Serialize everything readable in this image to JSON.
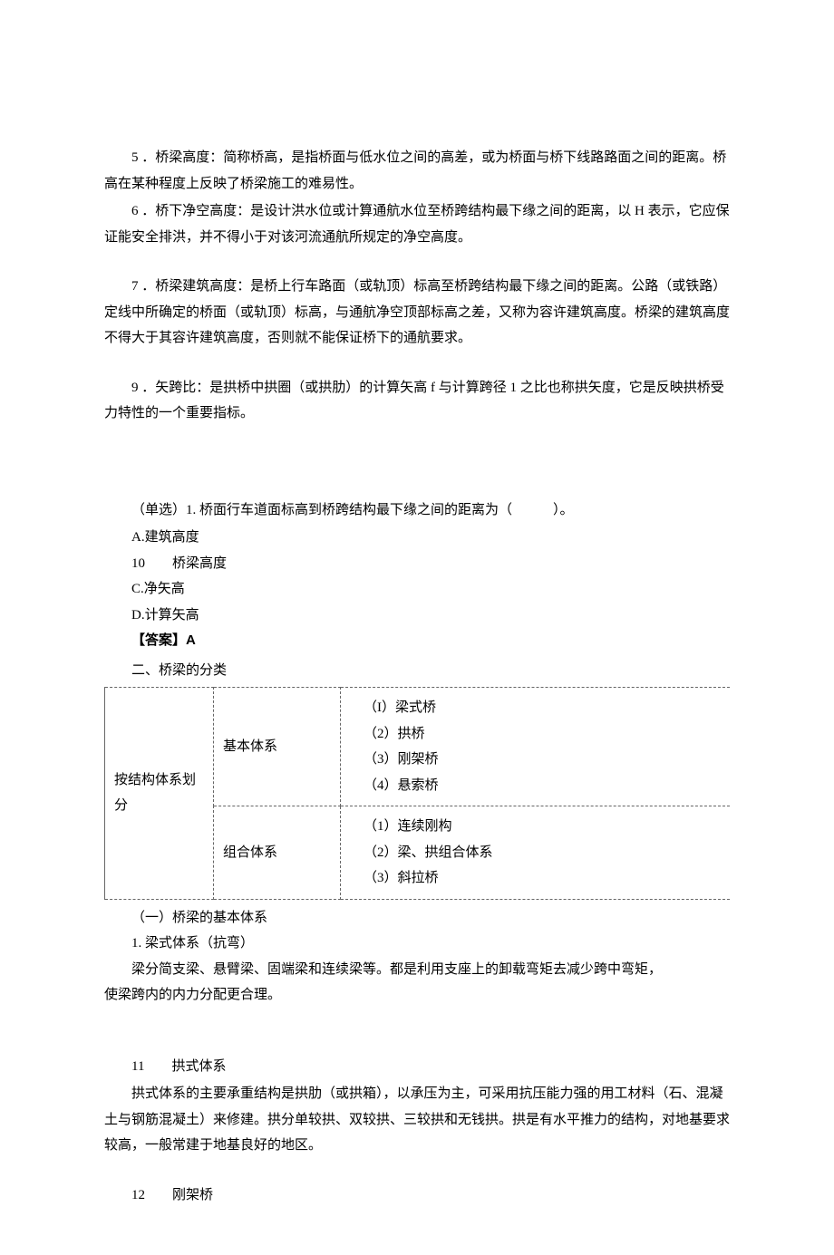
{
  "p5": "5 ．桥梁高度：简称桥高，是指桥面与低水位之间的高差，或为桥面与桥下线路路面之间的距离。桥高在某种程度上反映了桥梁施工的难易性。",
  "p6": "6 ．桥下净空高度：是设计洪水位或计算通航水位至桥跨结构最下缘之间的距离，以 H 表示，它应保证能安全排洪，并不得小于对该河流通航所规定的净空高度。",
  "p7": "7 ．桥梁建筑高度：是桥上行车路面（或轨顶）标高至桥跨结构最下缘之间的距离。公路（或铁路）定线中所确定的桥面（或轨顶）标高，与通航净空顶部标高之差，又称为容许建筑高度。桥梁的建筑高度不得大于其容许建筑高度，否则就不能保证桥下的通航要求。",
  "p9": "9 ．矢跨比：是拱桥中拱圈（或拱肋）的计算矢高 f 与计算跨径 1 之比也称拱矢度，它是反映拱桥受力特性的一个重要指标。",
  "question": "（单选）1. 桥面行车道面标高到桥跨结构最下缘之间的距离为（　　　）。",
  "optA": "A.建筑高度",
  "optB": "10　　桥梁高度",
  "optC": "C.净矢高",
  "optD": "D.计算矢高",
  "answer": "【答案】A",
  "section2": "二、桥梁的分类",
  "table": {
    "row1col1": "按结构体系划分",
    "row1col2": "基本体系",
    "row1col3_1": "（I）梁式桥",
    "row1col3_2": "（2）拱桥",
    "row1col3_3": "（3）刚架桥",
    "row1col3_4": "（4）悬索桥",
    "row2col2": "组合体系",
    "row2col3_1": "（1）连续刚构",
    "row2col3_2": "（2）梁、拱组合体系",
    "row2col3_3": "（3）斜拉桥"
  },
  "sub1": "（一）桥梁的基本体系",
  "sub1_1": "1. 梁式体系（抗弯）",
  "sub1_2": "梁分简支梁、悬臂梁、固端梁和连续梁等。都是利用支座上的卸载弯矩去减少跨中弯矩，",
  "sub1_3": "使梁跨内的内力分配更合理。",
  "p11_title": "11　　拱式体系",
  "p11_body": "拱式体系的主要承重结构是拱肋（或拱箱），以承压为主，可采用抗压能力强的用工材料（石、混凝土与钢筋混凝土）来修建。拱分单较拱、双较拱、三较拱和无钱拱。拱是有水平推力的结构，对地基要求较高，一般常建于地基良好的地区。",
  "p12": "12　　刚架桥"
}
